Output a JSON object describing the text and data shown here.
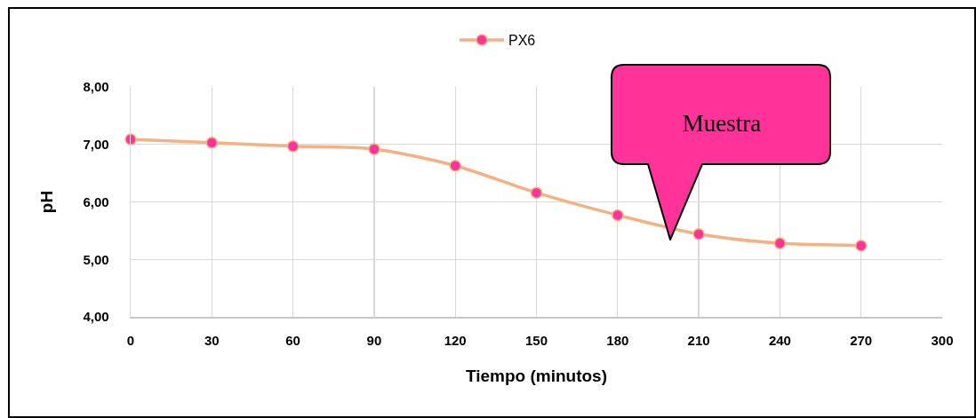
{
  "chart_data": {
    "type": "line",
    "xlabel": "Tiempo (minutos)",
    "ylabel": "pH",
    "x": [
      0,
      30,
      60,
      90,
      120,
      150,
      180,
      210,
      240,
      270
    ],
    "series": [
      {
        "name": "PX6",
        "color": "#f4b183",
        "colors": [
          "#ff3399",
          "#ff3399",
          "#ff3399",
          "#ff3399",
          "#ff3399",
          "#ff3399",
          "#ff3399",
          "#ff3399",
          "#ff3399",
          "#ff3399"
        ],
        "values": [
          7.09,
          7.03,
          6.97,
          6.92,
          6.63,
          6.16,
          5.77,
          5.44,
          5.28,
          5.24
        ]
      }
    ],
    "xlim": [
      0,
      300
    ],
    "xticks": [
      0,
      30,
      60,
      90,
      120,
      150,
      180,
      210,
      240,
      270,
      300
    ],
    "ylim": [
      4,
      8
    ],
    "yticks": [
      {
        "value": 4,
        "label": "4,00"
      },
      {
        "value": 5,
        "label": "5,00"
      },
      {
        "value": 6,
        "label": "6,00"
      },
      {
        "value": 7,
        "label": "7,00"
      },
      {
        "value": 8,
        "label": "8,00"
      }
    ],
    "annotations": [
      "Muestra"
    ],
    "grid": true,
    "legend": "top",
    "marker": "circle"
  }
}
